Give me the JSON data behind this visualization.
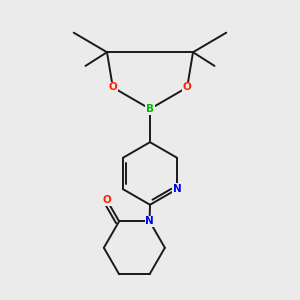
{
  "background_color": "#ebebeb",
  "bond_color": "#1a1a1a",
  "bond_width": 1.4,
  "atom_colors": {
    "B": "#00bb00",
    "O": "#ff2200",
    "N": "#0000ee",
    "C": "#1a1a1a"
  },
  "figsize": [
    3.0,
    3.0
  ],
  "dpi": 100
}
